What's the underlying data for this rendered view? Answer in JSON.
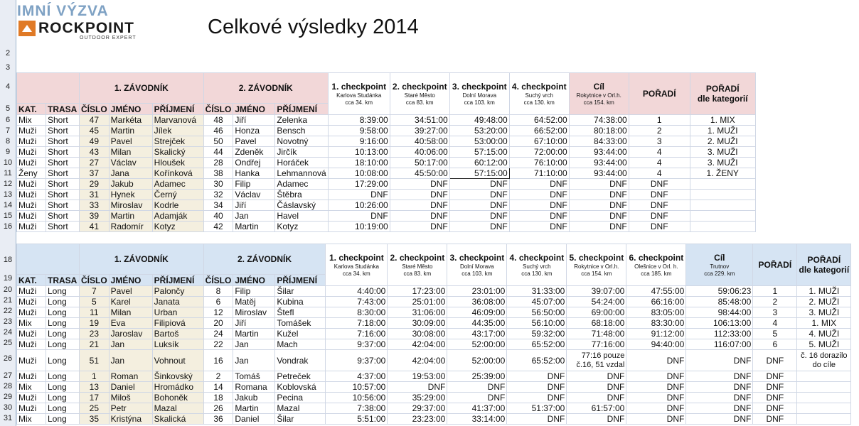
{
  "header": {
    "logo_top": "IMNÍ VÝZVA",
    "logo_brand": "ROCKPOINT",
    "logo_tag": "OUTDOOR EXPERT",
    "title": "Celkové výsledky 2014"
  },
  "colors": {
    "pink": "#f2d7d8",
    "blue": "#d6e4f3",
    "mix": "#9a6a1e",
    "zeny": "#c0392b"
  },
  "row_numbers": {
    "top": [
      "2",
      "3",
      "4",
      "5",
      "6",
      "7",
      "8",
      "9",
      "10",
      "11",
      "12",
      "13",
      "14",
      "15",
      "16"
    ],
    "bottom": [
      "18",
      "19",
      "20",
      "21",
      "22",
      "23",
      "24",
      "25",
      "26",
      "27",
      "28",
      "29",
      "30",
      "31"
    ]
  },
  "short_table": {
    "group1": "1. ZÁVODNÍK",
    "group2": "2. ZÁVODNÍK",
    "checkpoints": [
      {
        "title": "1. checkpoint",
        "sub": "Karlova Studánka",
        "km": "cca 34. km"
      },
      {
        "title": "2. checkpoint",
        "sub": "Staré Město",
        "km": "cca 83. km"
      },
      {
        "title": "3. checkpoint",
        "sub": "Dolní Morava",
        "km": "cca 103. km"
      },
      {
        "title": "4. checkpoint",
        "sub": "Suchý vrch",
        "km": "cca 130. km"
      }
    ],
    "finish": {
      "title": "Cíl",
      "sub": "Rokytnice v Orl.h.",
      "km": "cca 154. km"
    },
    "rank_label": "POŘADÍ",
    "cat_rank_label1": "POŘADÍ",
    "cat_rank_label2": "dle kategorií",
    "columns": [
      "KAT.",
      "TRASA",
      "ČÍSLO",
      "JMÉNO",
      "PŘÍJMENÍ",
      "ČÍSLO",
      "JMÉNO",
      "PŘÍJMENÍ"
    ],
    "rows": [
      {
        "cls": "mix",
        "cells": [
          "Mix",
          "Short",
          "47",
          "Markéta",
          "Marvanová",
          "48",
          "Jiří",
          "Zelenka",
          "8:39:00",
          "34:51:00",
          "49:48:00",
          "64:52:00",
          "74:38:00",
          "1",
          "1. MIX"
        ]
      },
      {
        "cls": "",
        "cells": [
          "Muži",
          "Short",
          "45",
          "Martin",
          "Jílek",
          "46",
          "Honza",
          "Bensch",
          "9:58:00",
          "39:27:00",
          "53:20:00",
          "66:52:00",
          "80:18:00",
          "2",
          "1. MUŽI"
        ]
      },
      {
        "cls": "",
        "cells": [
          "Muži",
          "Short",
          "49",
          "Pavel",
          "Strejček",
          "50",
          "Pavel",
          "Novotný",
          "9:16:00",
          "40:58:00",
          "53:00:00",
          "67:10:00",
          "84:33:00",
          "3",
          "2. MUŽI"
        ]
      },
      {
        "cls": "",
        "cells": [
          "Muži",
          "Short",
          "43",
          "Milan",
          "Skalický",
          "44",
          "Zdeněk",
          "Jirčík",
          "10:13:00",
          "40:06:00",
          "57:15:00",
          "72:00:00",
          "93:44:00",
          "4",
          "3. MUŽI"
        ]
      },
      {
        "cls": "",
        "cells": [
          "Muži",
          "Short",
          "27",
          "Václav",
          "Hloušek",
          "28",
          "Ondřej",
          "Horáček",
          "18:10:00",
          "50:17:00",
          "60:12:00",
          "76:10:00",
          "93:44:00",
          "4",
          "3. MUŽI"
        ]
      },
      {
        "cls": "zeny",
        "cells": [
          "Ženy",
          "Short",
          "37",
          "Jana",
          "Kořínková",
          "38",
          "Hanka",
          "Lehmannová",
          "10:08:00",
          "45:50:00",
          "57:15:00",
          "71:10:00",
          "93:44:00",
          "4",
          "1. ŽENY"
        ]
      },
      {
        "cls": "",
        "cells": [
          "Muži",
          "Short",
          "29",
          "Jakub",
          "Adamec",
          "30",
          "Filip",
          "Adamec",
          "17:29:00",
          "DNF",
          "DNF",
          "DNF",
          "DNF",
          "DNF",
          ""
        ]
      },
      {
        "cls": "",
        "cells": [
          "Muži",
          "Short",
          "31",
          "Hynek",
          "Černý",
          "32",
          "Václav",
          "Štěbra",
          "DNF",
          "DNF",
          "DNF",
          "DNF",
          "DNF",
          "DNF",
          ""
        ]
      },
      {
        "cls": "",
        "cells": [
          "Muži",
          "Short",
          "33",
          "Miroslav",
          "Kodrle",
          "34",
          "Jiří",
          "Čáslavský",
          "10:26:00",
          "DNF",
          "DNF",
          "DNF",
          "DNF",
          "DNF",
          ""
        ]
      },
      {
        "cls": "",
        "cells": [
          "Muži",
          "Short",
          "39",
          "Martin",
          "Adamják",
          "40",
          "Jan",
          "Havel",
          "DNF",
          "DNF",
          "DNF",
          "DNF",
          "DNF",
          "DNF",
          ""
        ]
      },
      {
        "cls": "",
        "cells": [
          "Muži",
          "Short",
          "41",
          "Radomír",
          "Kotyz",
          "42",
          "Martin",
          "Kotyz",
          "10:19:00",
          "DNF",
          "DNF",
          "DNF",
          "DNF",
          "DNF",
          ""
        ]
      }
    ]
  },
  "long_table": {
    "group1": "1. ZÁVODNÍK",
    "group2": "2. ZÁVODNÍK",
    "checkpoints": [
      {
        "title": "1. checkpoint",
        "sub": "Karlova Studánka",
        "km": "cca 34. km"
      },
      {
        "title": "2. checkpoint",
        "sub": "Staré Město",
        "km": "cca 83. km"
      },
      {
        "title": "3. checkpoint",
        "sub": "Dolní Morava",
        "km": "cca 103. km"
      },
      {
        "title": "4. checkpoint",
        "sub": "Suchý vrch",
        "km": "cca 130. km"
      },
      {
        "title": "5. checkpoint",
        "sub": "Rokytnice v Orl.h.",
        "km": "cca 154. km"
      },
      {
        "title": "6. checkpoint",
        "sub": "Olešnice v Orl. h.",
        "km": "cca 185. km"
      }
    ],
    "finish": {
      "title": "Cíl",
      "sub": "Trutnov",
      "km": "cca 229. km"
    },
    "rank_label": "POŘADÍ",
    "cat_rank_label1": "POŘADÍ",
    "cat_rank_label2": "dle kategorií",
    "columns": [
      "KAT.",
      "TRASA",
      "ČÍSLO",
      "JMÉNO",
      "PŘÍJMENÍ",
      "ČÍSLO",
      "JMÉNO",
      "PŘÍJMENÍ"
    ],
    "rows": [
      {
        "cls": "",
        "cells": [
          "Muži",
          "Long",
          "7",
          "Pavel",
          "Palončy",
          "8",
          "Filip",
          "Šilar",
          "4:40:00",
          "17:23:00",
          "23:01:00",
          "31:33:00",
          "39:07:00",
          "47:55:00",
          "59:06:23",
          "1",
          "1. MUŽI"
        ]
      },
      {
        "cls": "",
        "cells": [
          "Muži",
          "Long",
          "5",
          "Karel",
          "Janata",
          "6",
          "Matěj",
          "Kubina",
          "7:43:00",
          "25:01:00",
          "36:08:00",
          "45:07:00",
          "54:24:00",
          "66:16:00",
          "85:48:00",
          "2",
          "2. MUŽI"
        ]
      },
      {
        "cls": "",
        "cells": [
          "Muži",
          "Long",
          "11",
          "Milan",
          "Urban",
          "12",
          "Miroslav",
          "Štefl",
          "8:30:00",
          "31:06:00",
          "46:09:00",
          "56:50:00",
          "69:00:00",
          "83:05:00",
          "98:44:00",
          "3",
          "3. MUŽI"
        ]
      },
      {
        "cls": "mix",
        "cells": [
          "Mix",
          "Long",
          "19",
          "Eva",
          "Filipiová",
          "20",
          "Jiří",
          "Tomášek",
          "7:18:00",
          "30:09:00",
          "44:35:00",
          "56:10:00",
          "68:18:00",
          "83:30:00",
          "106:13:00",
          "4",
          "1. MIX"
        ]
      },
      {
        "cls": "",
        "cells": [
          "Muži",
          "Long",
          "23",
          "Jaroslav",
          "Bartoš",
          "24",
          "Martin",
          "Kužel",
          "7:16:00",
          "30:08:00",
          "43:17:00",
          "59:32:00",
          "71:48:00",
          "91:12:00",
          "112:33:00",
          "5",
          "4. MUŽI"
        ]
      },
      {
        "cls": "",
        "cells": [
          "Muži",
          "Long",
          "21",
          "Jan",
          "Luksík",
          "22",
          "Jan",
          "Mach",
          "9:37:00",
          "42:04:00",
          "52:00:00",
          "65:52:00",
          "77:16:00",
          "94:40:00",
          "116:07:00",
          "6",
          "5. MUŽI"
        ]
      },
      {
        "cls": "tall",
        "cells": [
          "Muži",
          "Long",
          "51",
          "Jan",
          "Vohnout",
          "16",
          "Jan",
          "Vondrak",
          "9:37:00",
          "42:04:00",
          "52:00:00",
          "65:52:00",
          "77:16 pouze č.16, 51 vzdal",
          "DNF",
          "DNF",
          "DNF",
          "č. 16 dorazilo do cíle"
        ]
      },
      {
        "cls": "",
        "cells": [
          "Muži",
          "Long",
          "1",
          "Roman",
          "Šinkovský",
          "2",
          "Tomáš",
          "Petreček",
          "4:37:00",
          "19:53:00",
          "25:39:00",
          "DNF",
          "DNF",
          "DNF",
          "DNF",
          "DNF",
          ""
        ]
      },
      {
        "cls": "mix",
        "cells": [
          "Mix",
          "Long",
          "13",
          "Daniel",
          "Hromádko",
          "14",
          "Romana",
          "Koblovská",
          "10:57:00",
          "DNF",
          "DNF",
          "DNF",
          "DNF",
          "DNF",
          "DNF",
          "DNF",
          ""
        ]
      },
      {
        "cls": "",
        "cells": [
          "Muži",
          "Long",
          "17",
          "Miloš",
          "Bohoněk",
          "18",
          "Jakub",
          "Pecina",
          "10:56:00",
          "35:29:00",
          "DNF",
          "DNF",
          "DNF",
          "DNF",
          "DNF",
          "DNF",
          ""
        ]
      },
      {
        "cls": "",
        "cells": [
          "Muži",
          "Long",
          "25",
          "Petr",
          "Mazal",
          "26",
          "Martin",
          "Mazal",
          "7:38:00",
          "29:37:00",
          "41:37:00",
          "51:37:00",
          "61:57:00",
          "DNF",
          "DNF",
          "DNF",
          ""
        ]
      },
      {
        "cls": "mix",
        "cells": [
          "Mix",
          "Long",
          "35",
          "Kristýna",
          "Skalická",
          "36",
          "Daniel",
          "Šilar",
          "5:51:00",
          "23:23:00",
          "33:14:00",
          "DNF",
          "DNF",
          "DNF",
          "DNF",
          "DNF",
          ""
        ]
      }
    ]
  }
}
